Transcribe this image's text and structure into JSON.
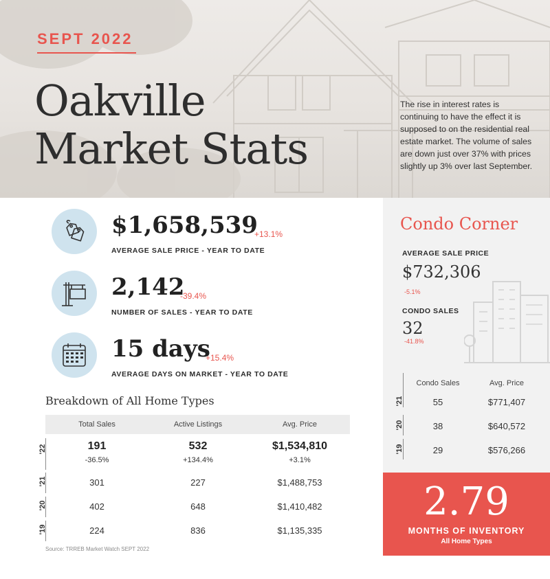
{
  "header": {
    "month": "SEPT 2022",
    "title_line1": "Oakville",
    "title_line2": "Market Stats",
    "intro": "The rise in interest rates is continuing to have the effect it is supposed to on the residential real estate market.  The volume of sales are down just over 37% with prices slightly up 3% over last September."
  },
  "stats": [
    {
      "value": "$1,658,539",
      "change": "+13.1%",
      "label": "AVERAGE SALE PRICE - YEAR TO DATE",
      "icon": "price-tag-icon"
    },
    {
      "value": "2,142",
      "change": "-39.4%",
      "label": "NUMBER OF SALES - YEAR TO DATE",
      "icon": "sale-sign-icon"
    },
    {
      "value": "15 days",
      "change": "+15.4%",
      "label": "AVERAGE DAYS ON MARKET - YEAR TO DATE",
      "icon": "calendar-icon"
    }
  ],
  "breakdown": {
    "title": "Breakdown of All Home Types",
    "columns": [
      "Total Sales",
      "Active Listings",
      "Avg. Price"
    ],
    "current": {
      "year": "'22",
      "total_sales": "191",
      "total_sales_change": "-36.5%",
      "active_listings": "532",
      "active_listings_change": "+134.4%",
      "avg_price": "$1,534,810",
      "avg_price_change": "+3.1%"
    },
    "rows": [
      {
        "year": "'21",
        "total_sales": "301",
        "active_listings": "227",
        "avg_price": "$1,488,753"
      },
      {
        "year": "'20",
        "total_sales": "402",
        "active_listings": "648",
        "avg_price": "$1,410,482"
      },
      {
        "year": "'19",
        "total_sales": "224",
        "active_listings": "836",
        "avg_price": "$1,135,335"
      }
    ],
    "source": "Source: TRREB Market Watch SEPT 2022"
  },
  "condo": {
    "title": "Condo Corner",
    "avg_price_label": "AVERAGE SALE PRICE",
    "avg_price": "$732,306",
    "avg_price_change": "-5.1%",
    "sales_label": "CONDO SALES",
    "sales": "32",
    "sales_change": "-41.8%",
    "columns": [
      "Condo Sales",
      "Avg. Price"
    ],
    "rows": [
      {
        "year": "'21",
        "sales": "55",
        "avg_price": "$771,407"
      },
      {
        "year": "'20",
        "sales": "38",
        "avg_price": "$640,572"
      },
      {
        "year": "'19",
        "sales": "29",
        "avg_price": "$576,266"
      }
    ],
    "buildings_icon": "city-buildings-icon"
  },
  "inventory": {
    "value": "2.79",
    "label": "MONTHS OF INVENTORY",
    "sublabel": "All Home Types"
  },
  "colors": {
    "accent": "#e8554e",
    "icon_circle": "#cfe3ee",
    "panel": "#f2f2f2"
  }
}
